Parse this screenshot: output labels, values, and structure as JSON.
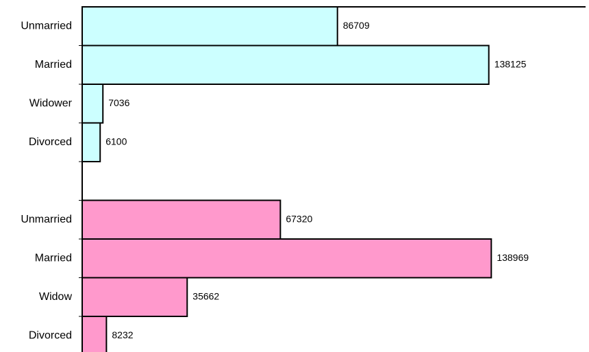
{
  "chart_data": {
    "type": "bar",
    "orientation": "horizontal",
    "categories": [
      "Unmarried",
      "Married",
      "Widower",
      "Divorced",
      null,
      "Unmarried",
      "Married",
      "Widow",
      "Divorced"
    ],
    "values": [
      86709,
      138125,
      7036,
      6100,
      null,
      67320,
      138969,
      35662,
      8232
    ],
    "colors": [
      "#ccffff",
      "#ccffff",
      "#ccffff",
      "#ccffff",
      null,
      "#ff99cc",
      "#ff99cc",
      "#ff99cc",
      "#ff99cc"
    ],
    "xlim": [
      0,
      171000
    ]
  }
}
